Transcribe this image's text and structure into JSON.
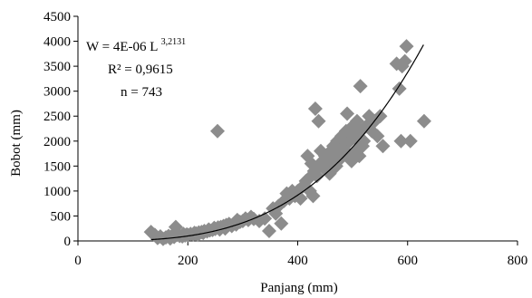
{
  "chart_data": {
    "type": "scatter",
    "title": "",
    "xlabel": "Panjang (mm)",
    "ylabel": "Bobot (mm)",
    "xlim": [
      0,
      800
    ],
    "ylim": [
      0,
      4500
    ],
    "xticks": [
      0,
      200,
      400,
      600,
      800
    ],
    "yticks": [
      0,
      500,
      1000,
      1500,
      2000,
      2500,
      3000,
      3500,
      4000,
      4500
    ],
    "grid": false,
    "marker": "diamond",
    "marker_color": "#8c8c8c",
    "trend_color": "#000000",
    "annotations": {
      "equation_base": "W = 4E-06 L ",
      "equation_exponent": "3,2131",
      "r_squared": "R² = 0,9615",
      "n": "n = 743"
    },
    "trendline": {
      "type": "power",
      "a": 4e-06,
      "b": 3.2131
    },
    "points": [
      [
        133,
        180
      ],
      [
        140,
        120
      ],
      [
        145,
        60
      ],
      [
        150,
        90
      ],
      [
        155,
        40
      ],
      [
        160,
        70
      ],
      [
        165,
        100
      ],
      [
        168,
        50
      ],
      [
        172,
        110
      ],
      [
        175,
        80
      ],
      [
        178,
        280
      ],
      [
        180,
        120
      ],
      [
        185,
        100
      ],
      [
        190,
        90
      ],
      [
        192,
        140
      ],
      [
        195,
        110
      ],
      [
        198,
        130
      ],
      [
        200,
        120
      ],
      [
        205,
        140
      ],
      [
        210,
        130
      ],
      [
        212,
        160
      ],
      [
        215,
        150
      ],
      [
        218,
        120
      ],
      [
        220,
        170
      ],
      [
        225,
        180
      ],
      [
        228,
        160
      ],
      [
        230,
        200
      ],
      [
        235,
        190
      ],
      [
        238,
        230
      ],
      [
        240,
        210
      ],
      [
        245,
        220
      ],
      [
        248,
        260
      ],
      [
        250,
        240
      ],
      [
        254,
        2200
      ],
      [
        255,
        270
      ],
      [
        258,
        230
      ],
      [
        260,
        280
      ],
      [
        265,
        300
      ],
      [
        268,
        250
      ],
      [
        270,
        320
      ],
      [
        275,
        340
      ],
      [
        280,
        300
      ],
      [
        285,
        360
      ],
      [
        288,
        330
      ],
      [
        290,
        420
      ],
      [
        295,
        380
      ],
      [
        300,
        400
      ],
      [
        305,
        450
      ],
      [
        310,
        420
      ],
      [
        315,
        480
      ],
      [
        320,
        440
      ],
      [
        330,
        400
      ],
      [
        340,
        450
      ],
      [
        348,
        200
      ],
      [
        355,
        650
      ],
      [
        360,
        550
      ],
      [
        365,
        700
      ],
      [
        370,
        350
      ],
      [
        375,
        800
      ],
      [
        380,
        950
      ],
      [
        385,
        850
      ],
      [
        390,
        1000
      ],
      [
        395,
        900
      ],
      [
        400,
        1000
      ],
      [
        405,
        850
      ],
      [
        410,
        1100
      ],
      [
        415,
        1200
      ],
      [
        418,
        1700
      ],
      [
        420,
        1250
      ],
      [
        422,
        1000
      ],
      [
        425,
        1550
      ],
      [
        428,
        900
      ],
      [
        430,
        1400
      ],
      [
        432,
        2650
      ],
      [
        435,
        1300
      ],
      [
        438,
        2400
      ],
      [
        440,
        1500
      ],
      [
        442,
        1800
      ],
      [
        445,
        1600
      ],
      [
        448,
        1450
      ],
      [
        450,
        1700
      ],
      [
        455,
        1550
      ],
      [
        458,
        1350
      ],
      [
        460,
        1800
      ],
      [
        462,
        1600
      ],
      [
        465,
        1900
      ],
      [
        468,
        1700
      ],
      [
        470,
        1500
      ],
      [
        472,
        2000
      ],
      [
        475,
        1800
      ],
      [
        478,
        1650
      ],
      [
        480,
        2100
      ],
      [
        485,
        1900
      ],
      [
        488,
        2200
      ],
      [
        490,
        2550
      ],
      [
        492,
        1750
      ],
      [
        495,
        2000
      ],
      [
        498,
        1600
      ],
      [
        500,
        2300
      ],
      [
        502,
        2100
      ],
      [
        505,
        1800
      ],
      [
        508,
        2400
      ],
      [
        510,
        2000
      ],
      [
        512,
        1700
      ],
      [
        514,
        3100
      ],
      [
        515,
        2200
      ],
      [
        518,
        1900
      ],
      [
        520,
        2000
      ],
      [
        525,
        2300
      ],
      [
        530,
        2500
      ],
      [
        535,
        2200
      ],
      [
        540,
        2400
      ],
      [
        545,
        2100
      ],
      [
        550,
        2500
      ],
      [
        555,
        1900
      ],
      [
        580,
        3550
      ],
      [
        585,
        3050
      ],
      [
        588,
        2000
      ],
      [
        590,
        3500
      ],
      [
        595,
        3600
      ],
      [
        598,
        3900
      ],
      [
        605,
        2000
      ],
      [
        630,
        2400
      ]
    ]
  }
}
